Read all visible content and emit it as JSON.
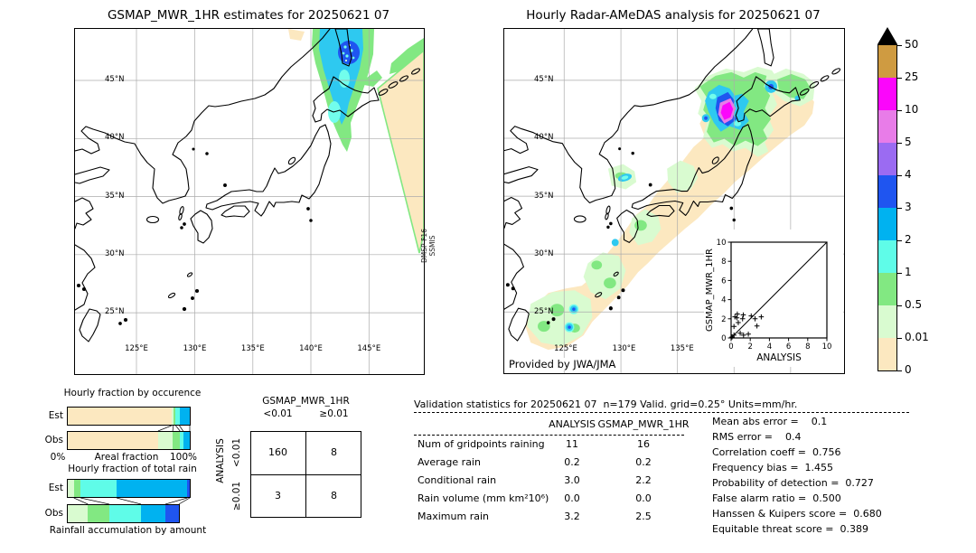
{
  "titles": {
    "left_map": "GSMAP_MWR_1HR estimates for 20250621 07",
    "right_map": "Hourly Radar-AMeDAS analysis for 20250621 07"
  },
  "annotations": {
    "satellite": "DMSP-F16\nSSMIS",
    "credit": "Provided by JWA/JMA"
  },
  "map_axes": {
    "lat_labels": [
      "45°N",
      "40°N",
      "35°N",
      "30°N",
      "25°N"
    ],
    "lon_labels": [
      "125°E",
      "130°E",
      "135°E",
      "140°E",
      "145°E"
    ]
  },
  "colorbar": {
    "tick_labels": [
      "50",
      "25",
      "10",
      "5",
      "4",
      "3",
      "2",
      "1",
      "0.5",
      "0.01",
      "0"
    ],
    "colors": [
      "#cf9b41",
      "#fb06fb",
      "#e87ce8",
      "#9b6bf2",
      "#1f55f0",
      "#00b2f0",
      "#5ffce8",
      "#82e882",
      "#d9fbd0",
      "#fce8c0"
    ],
    "over_arrow_color": "#000000"
  },
  "chart_data": [
    {
      "type": "scatter",
      "xlabel": "ANALYSIS",
      "ylabel": "GSMAP_MWR_1HR",
      "xlim": [
        0,
        10
      ],
      "ylim": [
        0,
        10
      ],
      "xticks": [
        0,
        2,
        4,
        6,
        8,
        10
      ],
      "yticks": [
        0,
        2,
        4,
        6,
        8,
        10
      ],
      "diagonal_line": true,
      "marker": "+",
      "points": [
        [
          0.1,
          0.1
        ],
        [
          0.3,
          0.3
        ],
        [
          0.3,
          1.2
        ],
        [
          0.4,
          2.2
        ],
        [
          0.6,
          2.1
        ],
        [
          0.65,
          2.5
        ],
        [
          0.75,
          1.6
        ],
        [
          0.95,
          0.5
        ],
        [
          1.2,
          2.0
        ],
        [
          1.27,
          2.4
        ],
        [
          1.3,
          0.3
        ],
        [
          1.8,
          0.4
        ],
        [
          2.1,
          2.3
        ],
        [
          2.5,
          2.0
        ],
        [
          2.7,
          1.25
        ],
        [
          3.15,
          2.2
        ]
      ]
    },
    {
      "type": "bar",
      "title": "Hourly fraction by occurence",
      "xlabel": "Areal fraction",
      "x_axis_labels": [
        "0%",
        "100%"
      ],
      "rows": [
        {
          "label": "Est",
          "segments": [
            {
              "c": "#fce8c0",
              "v": 85
            },
            {
              "c": "#d9fbd0",
              "v": 1.5
            },
            {
              "c": "#82e882",
              "v": 2
            },
            {
              "c": "#5ffce8",
              "v": 3
            },
            {
              "c": "#00b2f0",
              "v": 8.5
            }
          ]
        },
        {
          "label": "Obs",
          "segments": [
            {
              "c": "#fce8c0",
              "v": 74
            },
            {
              "c": "#d9fbd0",
              "v": 12
            },
            {
              "c": "#82e882",
              "v": 6
            },
            {
              "c": "#5ffce8",
              "v": 2.5
            },
            {
              "c": "#00b2f0",
              "v": 5.5
            }
          ]
        }
      ]
    },
    {
      "type": "bar",
      "title": "Hourly fraction of total rain",
      "xlabel": "Rainfall accumulation by amount",
      "rows": [
        {
          "label": "Est",
          "segments": [
            {
              "c": "#d9fbd0",
              "v": 5
            },
            {
              "c": "#82e882",
              "v": 5.5
            },
            {
              "c": "#5ffce8",
              "v": 29.5
            },
            {
              "c": "#00b2f0",
              "v": 58
            },
            {
              "c": "#1f55f0",
              "v": 2
            }
          ]
        },
        {
          "label": "Obs",
          "segments": [
            {
              "c": "#d9fbd0",
              "v": 16.5
            },
            {
              "c": "#82e882",
              "v": 17.5
            },
            {
              "c": "#5ffce8",
              "v": 26
            },
            {
              "c": "#00b2f0",
              "v": 20
            },
            {
              "c": "#1f55f0",
              "v": 11
            }
          ]
        }
      ]
    },
    {
      "type": "table",
      "title": "GSMAP_MWR_1HR",
      "ylabel": "ANALYSIS",
      "col_labels": [
        "<0.01",
        "≥0.01"
      ],
      "row_labels": [
        "<0.01",
        "≥0.01"
      ],
      "values": [
        [
          "160",
          "8"
        ],
        [
          "3",
          "8"
        ]
      ]
    },
    {
      "type": "table",
      "title": "Validation statistics for 20250621 07  n=179 Valid. grid=0.25° Units=mm/hr.",
      "col_headers": [
        "ANALYSIS",
        "GSMAP_MWR_1HR"
      ],
      "rows": [
        {
          "label": "Num of gridpoints raining",
          "analysis": "11",
          "gsmap": "16"
        },
        {
          "label": "Average rain",
          "analysis": "0.2",
          "gsmap": "0.2"
        },
        {
          "label": "Conditional rain",
          "analysis": "3.0",
          "gsmap": "2.2"
        },
        {
          "label": "Rain volume (mm km²10⁶)",
          "analysis": "0.0",
          "gsmap": "0.0"
        },
        {
          "label": "Maximum rain",
          "analysis": "3.2",
          "gsmap": "2.5"
        }
      ]
    }
  ],
  "summary_stats": [
    "Mean abs error =    0.1",
    "RMS error =    0.4",
    "Correlation coeff =  0.756",
    "Frequency bias =  1.455",
    "Probability of detection =  0.727",
    "False alarm ratio =  0.500",
    "Hanssen & Kuipers score =  0.680",
    "Equitable threat score =  0.389"
  ]
}
